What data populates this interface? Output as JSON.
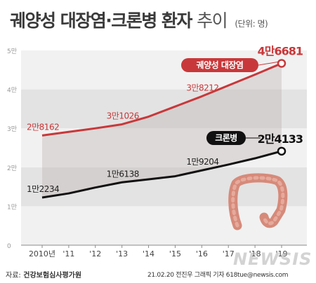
{
  "title": {
    "bold": "궤양성 대장염·크론병 환자",
    "light": "추이",
    "unit": "(단위: 명)"
  },
  "chart_data": {
    "type": "line",
    "x": [
      "2010년",
      "'11",
      "'12",
      "'13",
      "'14",
      "'15",
      "'16",
      "'17",
      "'18",
      "'19"
    ],
    "yticks": [
      "0",
      "1만",
      "2만",
      "3만",
      "4만",
      "5만"
    ],
    "ylim": [
      0,
      50000
    ],
    "grid": "horizontal bands",
    "series": [
      {
        "name": "궤양성 대장염",
        "color": "#c8383a",
        "values": [
          28162,
          29100,
          30000,
          31026,
          33000,
          35600,
          38212,
          41000,
          43800,
          46681
        ],
        "labels": [
          {
            "index": 0,
            "text": "2만8162"
          },
          {
            "index": 3,
            "text": "3만1026"
          },
          {
            "index": 6,
            "text": "3만8212"
          },
          {
            "index": 9,
            "text": "4만6681"
          }
        ]
      },
      {
        "name": "크론병",
        "color": "#111111",
        "values": [
          12234,
          13300,
          14800,
          16138,
          16900,
          17700,
          19204,
          20700,
          22300,
          24133
        ],
        "labels": [
          {
            "index": 0,
            "text": "1만2234"
          },
          {
            "index": 3,
            "text": "1만6138"
          },
          {
            "index": 6,
            "text": "1만9204"
          },
          {
            "index": 9,
            "text": "2만4133"
          }
        ]
      }
    ]
  },
  "footer": {
    "source_label": "자료:",
    "source": "건강보험심사평가원",
    "credit": "21.02.20  전진우  그래픽  기자  618tue@newsis.com"
  },
  "watermark": "NEWSIS"
}
